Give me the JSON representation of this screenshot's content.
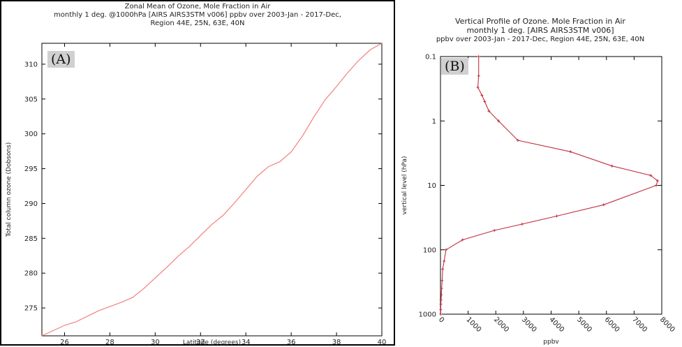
{
  "chart_data": [
    {
      "type": "line",
      "panel_label": "(A)",
      "title_lines": [
        "Zonal Mean of Ozone, Mole Fraction in Air",
        "monthly 1 deg. @1000hPa [AIRS AIRS3STM v006] ppbv over 2003-Jan - 2017-Dec,",
        "Region 44E, 25N, 63E, 40N"
      ],
      "xlabel": "Latitude (degrees)",
      "ylabel": "Total column ozone (Dobsons)",
      "xlim": [
        25,
        40
      ],
      "ylim": [
        271,
        313
      ],
      "xticks": [
        26,
        28,
        30,
        32,
        34,
        36,
        38,
        40
      ],
      "yticks": [
        275,
        280,
        285,
        290,
        295,
        300,
        305,
        310
      ],
      "line_color": "#f08080",
      "x": [
        25,
        26,
        26.5,
        27,
        27.5,
        28,
        28.5,
        29,
        29.5,
        30,
        30.5,
        31,
        31.5,
        32,
        32.5,
        33,
        33.5,
        34,
        34.5,
        35,
        35.5,
        36,
        36.5,
        37,
        37.5,
        38,
        38.5,
        39,
        39.5,
        40
      ],
      "y": [
        271,
        272.5,
        273,
        273.8,
        274.6,
        275.2,
        275.8,
        276.5,
        277.8,
        279.3,
        280.8,
        282.4,
        283.8,
        285.4,
        287.0,
        288.3,
        290.1,
        292.0,
        293.9,
        295.3,
        296.0,
        297.4,
        299.7,
        302.4,
        304.9,
        306.8,
        308.8,
        310.6,
        312.1,
        313.0
      ]
    },
    {
      "type": "line",
      "panel_label": "(B)",
      "title_lines": [
        "Vertical Profile of Ozone. Mole Fraction in Air",
        "monthly 1 deg. [AIRS AIRS3STM v006]",
        "ppbv over 2003-Jan - 2017-Dec, Region 44E, 25N, 63E, 40N"
      ],
      "xlabel": "ppbv",
      "ylabel": "vertical level (hPa)",
      "xlim": [
        0,
        8000
      ],
      "ylim": [
        0.1,
        1000
      ],
      "yscale": "log",
      "y_inverted": true,
      "xticks": [
        0,
        1000,
        2000,
        3000,
        4000,
        5000,
        6000,
        7000,
        8000
      ],
      "yticks": [
        0.1,
        1,
        10,
        100,
        1000
      ],
      "line_color": "#c0303e",
      "x": [
        1380,
        1380,
        1350,
        1500,
        1600,
        1750,
        2100,
        2800,
        4700,
        6200,
        7600,
        7850,
        7800,
        5900,
        4200,
        2950,
        1950,
        800,
        200,
        130,
        80,
        60,
        40,
        30,
        20,
        15,
        10,
        8
      ],
      "y": [
        0.1,
        0.2,
        0.3,
        0.4,
        0.5,
        0.7,
        1.0,
        2.0,
        3.0,
        5.0,
        7.0,
        8.5,
        10,
        20,
        30,
        40,
        50,
        70,
        100,
        150,
        200,
        300,
        400,
        500,
        600,
        700,
        850,
        1000
      ]
    }
  ]
}
